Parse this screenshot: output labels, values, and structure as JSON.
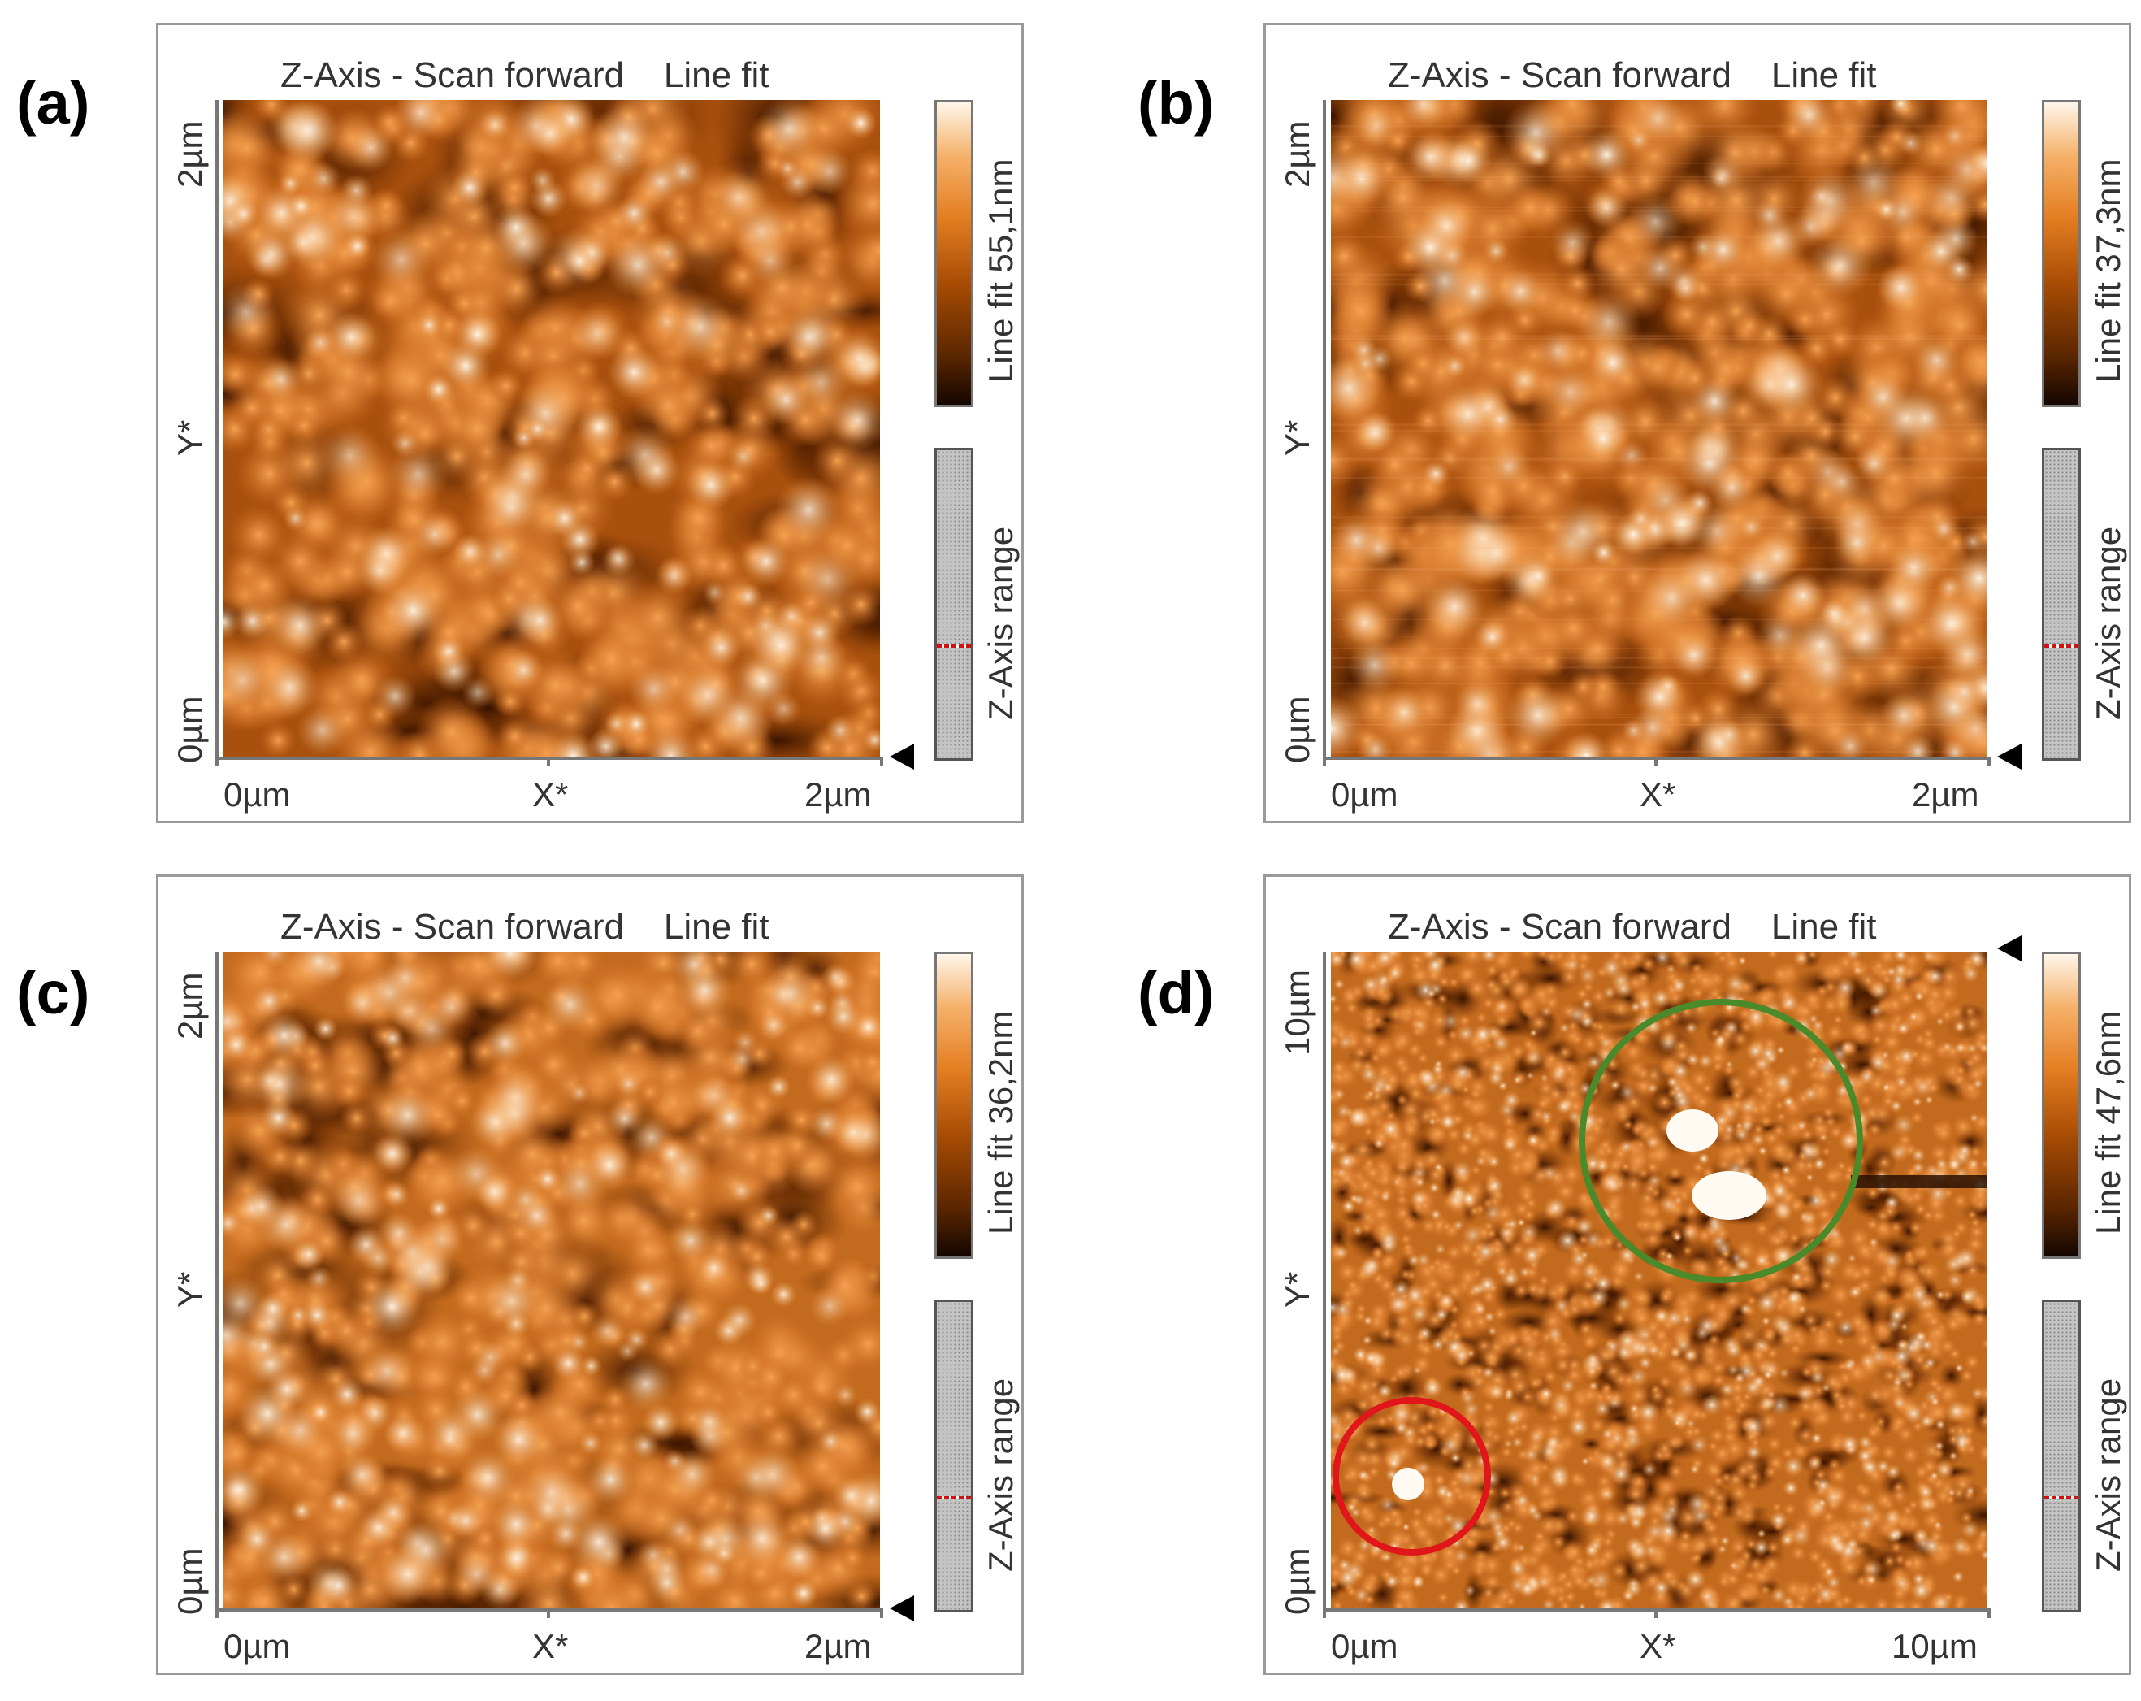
{
  "colors": {
    "scan_dark": "#1e0a00",
    "scan_mid": "#c06418",
    "scan_light": "#fff0da",
    "green_circle": "#4a8a2a",
    "red_circle": "#e0161a",
    "zrange_marker": "#d41010"
  },
  "panels": [
    {
      "letter": "(a)",
      "title": "Z-Axis - Scan forward    Line fit",
      "y_top": "2µm",
      "y_mid": "Y*",
      "y_bottom": "0µm",
      "x_left": "0µm",
      "x_mid": "X*",
      "x_right": "2µm",
      "colorbar_label": "Line fit 55,1nm",
      "zrange_label": "Z-Axis range",
      "zrange_marker_fraction": 0.36,
      "marker_icon": "triangle-left-icon"
    },
    {
      "letter": "(b)",
      "title": "Z-Axis - Scan forward    Line fit",
      "y_top": "2µm",
      "y_mid": "Y*",
      "y_bottom": "0µm",
      "x_left": "0µm",
      "x_mid": "X*",
      "x_right": "2µm",
      "colorbar_label": "Line fit 37,3nm",
      "zrange_label": "Z-Axis range",
      "zrange_marker_fraction": 0.36,
      "marker_icon": "triangle-left-icon"
    },
    {
      "letter": "(c)",
      "title": "Z-Axis - Scan forward    Line fit",
      "y_top": "2µm",
      "y_mid": "Y*",
      "y_bottom": "0µm",
      "x_left": "0µm",
      "x_mid": "X*",
      "x_right": "2µm",
      "colorbar_label": "Line fit 36,2nm",
      "zrange_label": "Z-Axis range",
      "zrange_marker_fraction": 0.36,
      "marker_icon": "triangle-left-icon"
    },
    {
      "letter": "(d)",
      "title": "Z-Axis - Scan forward    Line fit",
      "y_top": "10µm",
      "y_mid": "Y*",
      "y_bottom": "0µm",
      "x_left": "0µm",
      "x_mid": "X*",
      "x_right": "10µm",
      "colorbar_label": "Line fit 47,6nm",
      "zrange_label": "Z-Axis range",
      "zrange_marker_fraction": 0.36,
      "marker_icon": "triangle-left-icon",
      "annotations": [
        "green-circle",
        "red-circle"
      ]
    }
  ]
}
